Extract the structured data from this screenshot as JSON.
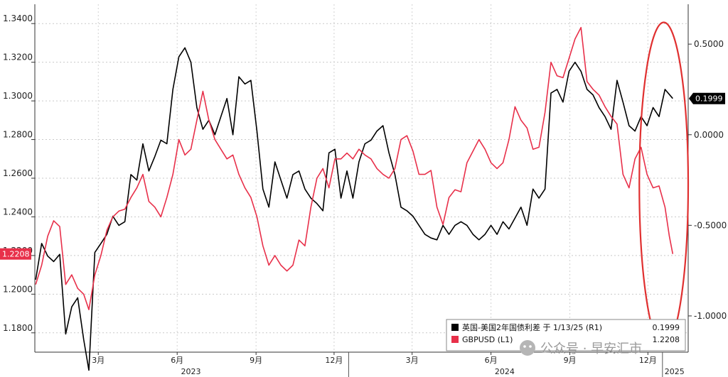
{
  "chart_data": {
    "type": "line",
    "left_axis": {
      "ticks": [
        1.18,
        1.2,
        1.22,
        1.24,
        1.26,
        1.28,
        1.3,
        1.32,
        1.34
      ],
      "tick_labels": [
        "1.1800",
        "1.2000",
        "1.2200",
        "1.2400",
        "1.2600",
        "1.2800",
        "1.3000",
        "1.3200",
        "1.3400"
      ],
      "range": [
        1.17,
        1.35
      ],
      "current_label": "1.2208"
    },
    "right_axis": {
      "ticks": [
        0.5,
        0.0,
        -0.5,
        -1.0
      ],
      "tick_labels": [
        "0.5000",
        "0.0000",
        "-0.5000",
        "-1.0000"
      ],
      "range": [
        -1.2,
        0.72
      ],
      "current_label": "0.1999"
    },
    "x_axis": {
      "range": [
        "2022-12-31",
        "2025-01-31"
      ],
      "months": [
        {
          "label": "3月",
          "date": "2023-03-15"
        },
        {
          "label": "6月",
          "date": "2023-06-15"
        },
        {
          "label": "9月",
          "date": "2023-09-15"
        },
        {
          "label": "12月",
          "date": "2023-12-15"
        },
        {
          "label": "3月",
          "date": "2024-03-15"
        },
        {
          "label": "6月",
          "date": "2024-06-15"
        },
        {
          "label": "9月",
          "date": "2024-09-15"
        },
        {
          "label": "12月",
          "date": "2024-12-15"
        }
      ],
      "years": [
        {
          "label": "2023",
          "date": "2023-07-01"
        },
        {
          "label": "2024",
          "date": "2024-07-01"
        },
        {
          "label": "2025",
          "date": "2025-01-15"
        }
      ],
      "year_separators": [
        "2024-01-01",
        "2025-01-01"
      ]
    },
    "series": [
      {
        "name": "英国-美国2年国债利差 于 1/13/25 (R1)",
        "value_label": "0.1999",
        "axis": "right",
        "color": "#000000",
        "points": [
          [
            "2023-01-01",
            -0.8
          ],
          [
            "2023-01-08",
            -0.6
          ],
          [
            "2023-01-15",
            -0.67
          ],
          [
            "2023-01-22",
            -0.7
          ],
          [
            "2023-01-29",
            -0.66
          ],
          [
            "2023-02-05",
            -1.1
          ],
          [
            "2023-02-12",
            -0.95
          ],
          [
            "2023-02-19",
            -0.9
          ],
          [
            "2023-02-26",
            -1.13
          ],
          [
            "2023-03-04",
            -1.3
          ],
          [
            "2023-03-11",
            -0.65
          ],
          [
            "2023-03-18",
            -0.6
          ],
          [
            "2023-03-25",
            -0.55
          ],
          [
            "2023-04-01",
            -0.45
          ],
          [
            "2023-04-08",
            -0.5
          ],
          [
            "2023-04-15",
            -0.48
          ],
          [
            "2023-04-22",
            -0.22
          ],
          [
            "2023-04-29",
            -0.25
          ],
          [
            "2023-05-06",
            -0.05
          ],
          [
            "2023-05-13",
            -0.2
          ],
          [
            "2023-05-20",
            -0.12
          ],
          [
            "2023-05-27",
            -0.03
          ],
          [
            "2023-06-03",
            -0.05
          ],
          [
            "2023-06-10",
            0.25
          ],
          [
            "2023-06-17",
            0.43
          ],
          [
            "2023-06-24",
            0.48
          ],
          [
            "2023-07-01",
            0.4
          ],
          [
            "2023-07-08",
            0.15
          ],
          [
            "2023-07-15",
            0.03
          ],
          [
            "2023-07-22",
            0.08
          ],
          [
            "2023-07-29",
            0.0
          ],
          [
            "2023-08-05",
            0.1
          ],
          [
            "2023-08-12",
            0.2
          ],
          [
            "2023-08-19",
            0.0
          ],
          [
            "2023-08-26",
            0.32
          ],
          [
            "2023-09-02",
            0.28
          ],
          [
            "2023-09-09",
            0.3
          ],
          [
            "2023-09-16",
            0.02
          ],
          [
            "2023-09-23",
            -0.3
          ],
          [
            "2023-09-30",
            -0.4
          ],
          [
            "2023-10-07",
            -0.15
          ],
          [
            "2023-10-14",
            -0.25
          ],
          [
            "2023-10-21",
            -0.35
          ],
          [
            "2023-10-28",
            -0.22
          ],
          [
            "2023-11-04",
            -0.2
          ],
          [
            "2023-11-11",
            -0.3
          ],
          [
            "2023-11-18",
            -0.35
          ],
          [
            "2023-11-25",
            -0.38
          ],
          [
            "2023-12-02",
            -0.42
          ],
          [
            "2023-12-09",
            -0.1
          ],
          [
            "2023-12-16",
            -0.08
          ],
          [
            "2023-12-23",
            -0.35
          ],
          [
            "2023-12-30",
            -0.2
          ],
          [
            "2024-01-06",
            -0.35
          ],
          [
            "2024-01-13",
            -0.15
          ],
          [
            "2024-01-20",
            -0.05
          ],
          [
            "2024-01-27",
            -0.03
          ],
          [
            "2024-02-03",
            0.02
          ],
          [
            "2024-02-10",
            0.05
          ],
          [
            "2024-02-17",
            -0.1
          ],
          [
            "2024-02-24",
            -0.22
          ],
          [
            "2024-03-02",
            -0.4
          ],
          [
            "2024-03-09",
            -0.42
          ],
          [
            "2024-03-16",
            -0.45
          ],
          [
            "2024-03-23",
            -0.5
          ],
          [
            "2024-03-30",
            -0.55
          ],
          [
            "2024-04-06",
            -0.57
          ],
          [
            "2024-04-13",
            -0.58
          ],
          [
            "2024-04-20",
            -0.5
          ],
          [
            "2024-04-27",
            -0.55
          ],
          [
            "2024-05-04",
            -0.5
          ],
          [
            "2024-05-11",
            -0.48
          ],
          [
            "2024-05-18",
            -0.5
          ],
          [
            "2024-05-25",
            -0.55
          ],
          [
            "2024-06-01",
            -0.58
          ],
          [
            "2024-06-08",
            -0.55
          ],
          [
            "2024-06-15",
            -0.5
          ],
          [
            "2024-06-22",
            -0.55
          ],
          [
            "2024-06-29",
            -0.48
          ],
          [
            "2024-07-06",
            -0.52
          ],
          [
            "2024-07-13",
            -0.46
          ],
          [
            "2024-07-20",
            -0.4
          ],
          [
            "2024-07-27",
            -0.5
          ],
          [
            "2024-08-03",
            -0.3
          ],
          [
            "2024-08-10",
            -0.35
          ],
          [
            "2024-08-17",
            -0.3
          ],
          [
            "2024-08-24",
            0.23
          ],
          [
            "2024-08-31",
            0.25
          ],
          [
            "2024-09-07",
            0.18
          ],
          [
            "2024-09-14",
            0.35
          ],
          [
            "2024-09-21",
            0.4
          ],
          [
            "2024-09-28",
            0.35
          ],
          [
            "2024-10-05",
            0.25
          ],
          [
            "2024-10-12",
            0.22
          ],
          [
            "2024-10-19",
            0.15
          ],
          [
            "2024-10-26",
            0.1
          ],
          [
            "2024-11-02",
            0.03
          ],
          [
            "2024-11-09",
            0.3
          ],
          [
            "2024-11-16",
            0.18
          ],
          [
            "2024-11-23",
            0.05
          ],
          [
            "2024-11-30",
            0.02
          ],
          [
            "2024-12-07",
            0.1
          ],
          [
            "2024-12-14",
            0.05
          ],
          [
            "2024-12-21",
            0.15
          ],
          [
            "2024-12-28",
            0.1
          ],
          [
            "2025-01-04",
            0.25
          ],
          [
            "2025-01-13",
            0.2
          ]
        ]
      },
      {
        "name": "GBPUSD (L1)",
        "value_label": "1.2208",
        "axis": "left",
        "color": "#e8304a",
        "points": [
          [
            "2023-01-01",
            1.205
          ],
          [
            "2023-01-08",
            1.215
          ],
          [
            "2023-01-15",
            1.23
          ],
          [
            "2023-01-22",
            1.238
          ],
          [
            "2023-01-29",
            1.235
          ],
          [
            "2023-02-05",
            1.205
          ],
          [
            "2023-02-12",
            1.21
          ],
          [
            "2023-02-19",
            1.203
          ],
          [
            "2023-02-26",
            1.2
          ],
          [
            "2023-03-04",
            1.192
          ],
          [
            "2023-03-11",
            1.21
          ],
          [
            "2023-03-18",
            1.22
          ],
          [
            "2023-03-25",
            1.233
          ],
          [
            "2023-04-01",
            1.24
          ],
          [
            "2023-04-08",
            1.243
          ],
          [
            "2023-04-15",
            1.244
          ],
          [
            "2023-04-22",
            1.25
          ],
          [
            "2023-04-29",
            1.255
          ],
          [
            "2023-05-06",
            1.262
          ],
          [
            "2023-05-13",
            1.248
          ],
          [
            "2023-05-20",
            1.245
          ],
          [
            "2023-05-27",
            1.24
          ],
          [
            "2023-06-03",
            1.25
          ],
          [
            "2023-06-10",
            1.262
          ],
          [
            "2023-06-17",
            1.28
          ],
          [
            "2023-06-24",
            1.272
          ],
          [
            "2023-07-01",
            1.275
          ],
          [
            "2023-07-08",
            1.29
          ],
          [
            "2023-07-15",
            1.305
          ],
          [
            "2023-07-22",
            1.29
          ],
          [
            "2023-07-29",
            1.28
          ],
          [
            "2023-08-05",
            1.275
          ],
          [
            "2023-08-12",
            1.27
          ],
          [
            "2023-08-19",
            1.272
          ],
          [
            "2023-08-26",
            1.262
          ],
          [
            "2023-09-02",
            1.255
          ],
          [
            "2023-09-09",
            1.25
          ],
          [
            "2023-09-16",
            1.24
          ],
          [
            "2023-09-23",
            1.225
          ],
          [
            "2023-09-30",
            1.215
          ],
          [
            "2023-10-07",
            1.22
          ],
          [
            "2023-10-14",
            1.215
          ],
          [
            "2023-10-21",
            1.212
          ],
          [
            "2023-10-28",
            1.215
          ],
          [
            "2023-11-04",
            1.228
          ],
          [
            "2023-11-11",
            1.225
          ],
          [
            "2023-11-18",
            1.245
          ],
          [
            "2023-11-25",
            1.26
          ],
          [
            "2023-12-02",
            1.265
          ],
          [
            "2023-12-09",
            1.255
          ],
          [
            "2023-12-16",
            1.27
          ],
          [
            "2023-12-23",
            1.27
          ],
          [
            "2023-12-30",
            1.273
          ],
          [
            "2024-01-06",
            1.27
          ],
          [
            "2024-01-13",
            1.275
          ],
          [
            "2024-01-20",
            1.272
          ],
          [
            "2024-01-27",
            1.27
          ],
          [
            "2024-02-03",
            1.265
          ],
          [
            "2024-02-10",
            1.262
          ],
          [
            "2024-02-17",
            1.26
          ],
          [
            "2024-02-24",
            1.265
          ],
          [
            "2024-03-02",
            1.28
          ],
          [
            "2024-03-09",
            1.282
          ],
          [
            "2024-03-16",
            1.274
          ],
          [
            "2024-03-23",
            1.262
          ],
          [
            "2024-03-30",
            1.262
          ],
          [
            "2024-04-06",
            1.264
          ],
          [
            "2024-04-13",
            1.245
          ],
          [
            "2024-04-20",
            1.236
          ],
          [
            "2024-04-27",
            1.25
          ],
          [
            "2024-05-04",
            1.254
          ],
          [
            "2024-05-11",
            1.253
          ],
          [
            "2024-05-18",
            1.268
          ],
          [
            "2024-05-25",
            1.274
          ],
          [
            "2024-06-01",
            1.28
          ],
          [
            "2024-06-08",
            1.275
          ],
          [
            "2024-06-15",
            1.268
          ],
          [
            "2024-06-22",
            1.265
          ],
          [
            "2024-06-29",
            1.268
          ],
          [
            "2024-07-06",
            1.28
          ],
          [
            "2024-07-13",
            1.297
          ],
          [
            "2024-07-20",
            1.29
          ],
          [
            "2024-07-27",
            1.286
          ],
          [
            "2024-08-03",
            1.275
          ],
          [
            "2024-08-10",
            1.276
          ],
          [
            "2024-08-17",
            1.294
          ],
          [
            "2024-08-24",
            1.32
          ],
          [
            "2024-08-31",
            1.313
          ],
          [
            "2024-09-07",
            1.312
          ],
          [
            "2024-09-14",
            1.322
          ],
          [
            "2024-09-21",
            1.332
          ],
          [
            "2024-09-28",
            1.338
          ],
          [
            "2024-10-05",
            1.31
          ],
          [
            "2024-10-12",
            1.306
          ],
          [
            "2024-10-19",
            1.303
          ],
          [
            "2024-10-26",
            1.297
          ],
          [
            "2024-11-02",
            1.292
          ],
          [
            "2024-11-09",
            1.288
          ],
          [
            "2024-11-16",
            1.262
          ],
          [
            "2024-11-23",
            1.255
          ],
          [
            "2024-11-30",
            1.27
          ],
          [
            "2024-12-07",
            1.276
          ],
          [
            "2024-12-14",
            1.262
          ],
          [
            "2024-12-21",
            1.255
          ],
          [
            "2024-12-28",
            1.256
          ],
          [
            "2025-01-04",
            1.245
          ],
          [
            "2025-01-09",
            1.23
          ],
          [
            "2025-01-13",
            1.2208
          ]
        ]
      }
    ],
    "annotations": [
      {
        "type": "ellipse",
        "color": "#e03030",
        "date_range": [
          "2024-12-05",
          "2025-01-31"
        ],
        "right_range": [
          -1.17,
          0.62
        ]
      }
    ]
  },
  "watermark": "公众号 · 早安汇市"
}
